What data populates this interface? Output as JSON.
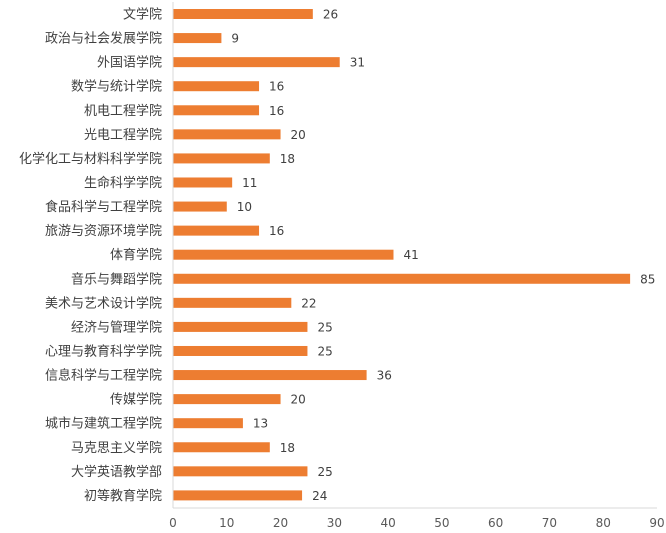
{
  "chart_data": {
    "type": "bar",
    "orientation": "horizontal",
    "categories": [
      "文学院",
      "政治与社会发展学院",
      "外国语学院",
      "数学与统计学院",
      "机电工程学院",
      "光电工程学院",
      "化学化工与材料科学学院",
      "生命科学学院",
      "食品科学与工程学院",
      "旅游与资源环境学院",
      "体育学院",
      "音乐与舞蹈学院",
      "美术与艺术设计学院",
      "经济与管理学院",
      "心理与教育科学学院",
      "信息科学与工程学院",
      "传媒学院",
      "城市与建筑工程学院",
      "马克思主义学院",
      "大学英语教学部",
      "初等教育学院"
    ],
    "values": [
      26,
      9,
      31,
      16,
      16,
      20,
      18,
      11,
      10,
      16,
      41,
      85,
      22,
      25,
      25,
      36,
      20,
      13,
      18,
      25,
      24
    ],
    "data_labels": [
      "26",
      "9",
      "31",
      "16",
      "16",
      "20",
      "18",
      "11",
      "10",
      "16",
      "41",
      "85",
      "22",
      "25",
      "25",
      "36",
      "20",
      "13",
      "18",
      "25",
      "24"
    ],
    "xlim": [
      0,
      90
    ],
    "x_ticks": [
      "0",
      "10",
      "20",
      "30",
      "40",
      "50",
      "60",
      "70",
      "80",
      "90"
    ],
    "title": "",
    "xlabel": "",
    "ylabel": "",
    "grid": false,
    "legend": "none",
    "colors": {
      "bar": "#ED7D31",
      "text": "#404040",
      "axis": "#d9d9d9"
    }
  }
}
